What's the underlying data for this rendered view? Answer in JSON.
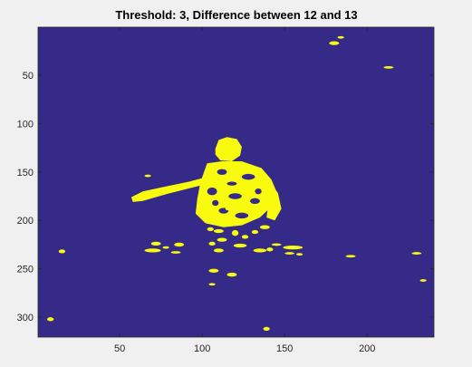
{
  "chart_data": {
    "type": "heatmap",
    "title": "Threshold: 3, Difference between 12 and 13",
    "xlabel": "",
    "ylabel": "",
    "xlim": [
      0.5,
      240.5
    ],
    "ylim": [
      0.5,
      320.5
    ],
    "y_reversed": true,
    "x_ticks": [
      50,
      100,
      150,
      200
    ],
    "y_ticks": [
      50,
      100,
      150,
      200,
      250,
      300
    ],
    "background_value": 0,
    "foreground_value": 1,
    "background_color": "#352a87",
    "foreground_color": "#f9fb0e",
    "regions": [
      {
        "name": "arm",
        "points": [
          [
            57,
            176
          ],
          [
            64,
            170
          ],
          [
            78,
            165
          ],
          [
            92,
            160
          ],
          [
            105,
            154
          ],
          [
            118,
            148
          ],
          [
            122,
            147
          ],
          [
            124,
            152
          ],
          [
            119,
            155
          ],
          [
            106,
            161
          ],
          [
            92,
            167
          ],
          [
            78,
            173
          ],
          [
            64,
            180
          ],
          [
            58,
            181
          ]
        ]
      },
      {
        "name": "head",
        "points": [
          [
            108,
            126
          ],
          [
            110,
            117
          ],
          [
            115,
            114
          ],
          [
            121,
            116
          ],
          [
            124,
            124
          ],
          [
            123,
            133
          ],
          [
            118,
            139
          ],
          [
            111,
            138
          ],
          [
            108,
            132
          ]
        ]
      },
      {
        "name": "torso",
        "points": [
          [
            103,
            141
          ],
          [
            112,
            139
          ],
          [
            124,
            139
          ],
          [
            136,
            146
          ],
          [
            142,
            158
          ],
          [
            145,
            170
          ],
          [
            143,
            184
          ],
          [
            135,
            197
          ],
          [
            124,
            205
          ],
          [
            113,
            207
          ],
          [
            102,
            203
          ],
          [
            96,
            193
          ],
          [
            97,
            178
          ],
          [
            99,
            160
          ]
        ]
      },
      {
        "name": "right-arm",
        "points": [
          [
            136,
            164
          ],
          [
            142,
            162
          ],
          [
            146,
            172
          ],
          [
            148,
            188
          ],
          [
            144,
            200
          ],
          [
            139,
            197
          ],
          [
            140,
            184
          ],
          [
            138,
            172
          ]
        ]
      }
    ],
    "blobs": [
      [
        184,
        11,
        2,
        1
      ],
      [
        180,
        17,
        3,
        2
      ],
      [
        213,
        42,
        3,
        1
      ],
      [
        67,
        154,
        2,
        1
      ],
      [
        102,
        191,
        3,
        2
      ],
      [
        108,
        187,
        2,
        2
      ],
      [
        117,
        188,
        3,
        2
      ],
      [
        128,
        191,
        3,
        2
      ],
      [
        138,
        207,
        3,
        2
      ],
      [
        105,
        209,
        2,
        2
      ],
      [
        110,
        211,
        3,
        2
      ],
      [
        120,
        213,
        2,
        3
      ],
      [
        112,
        220,
        3,
        2
      ],
      [
        126,
        217,
        2,
        2
      ],
      [
        123,
        226,
        4,
        2
      ],
      [
        106,
        224,
        2,
        2
      ],
      [
        110,
        231,
        3,
        2
      ],
      [
        132,
        212,
        2,
        2
      ],
      [
        72,
        224,
        3,
        2
      ],
      [
        70,
        231,
        5,
        2
      ],
      [
        78,
        228,
        2,
        1
      ],
      [
        86,
        225,
        3,
        2
      ],
      [
        84,
        233,
        3,
        1
      ],
      [
        135,
        231,
        4,
        2
      ],
      [
        141,
        230,
        2,
        2
      ],
      [
        145,
        225,
        3,
        1
      ],
      [
        155,
        228,
        6,
        2
      ],
      [
        153,
        234,
        3,
        1
      ],
      [
        159,
        235,
        2,
        1
      ],
      [
        190,
        237,
        3,
        1
      ],
      [
        230,
        234,
        3,
        1
      ],
      [
        234,
        262,
        2,
        1
      ],
      [
        15,
        232,
        2,
        2
      ],
      [
        107,
        252,
        3,
        2
      ],
      [
        118,
        256,
        3,
        2
      ],
      [
        106,
        266,
        2,
        1
      ],
      [
        8,
        302,
        2,
        2
      ],
      [
        139,
        312,
        2,
        2
      ]
    ]
  }
}
